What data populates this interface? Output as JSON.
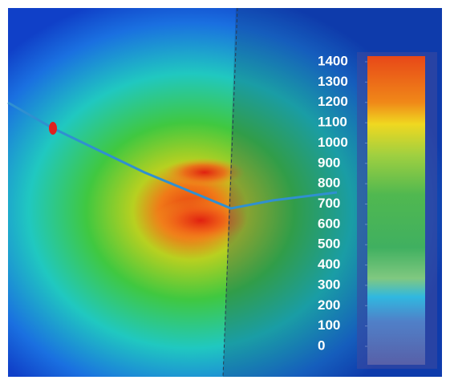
{
  "chart_data": {
    "type": "heatmap",
    "clim": [
      0,
      1400
    ],
    "cticks": [
      0,
      100,
      200,
      300,
      400,
      500,
      600,
      700,
      800,
      900,
      1000,
      1100,
      1200,
      1300,
      1400
    ]
  }
}
